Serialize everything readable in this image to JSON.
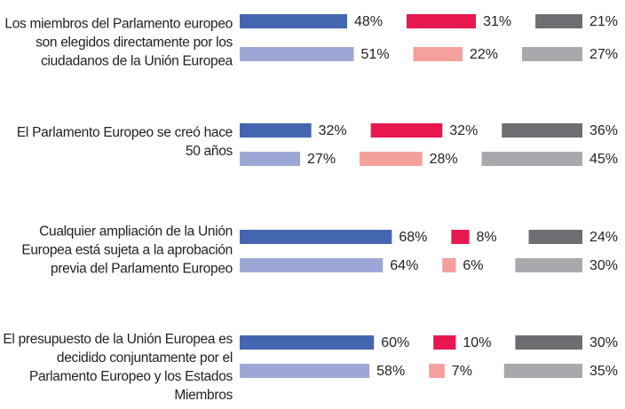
{
  "chart_data": {
    "type": "bar",
    "categories": [
      "Los miembros del Parlamento europeo son elegidos directamente por los ciudadanos de la Unión Europea",
      "El Parlamento Europeo se creó hace 50 años",
      "Cualquier ampliación de la Unión Europea está sujeta a la aprobación previa del Parlamento Europeo",
      "El presupuesto de la Unión Europea es decidido conjuntamente por el Parlamento Europeo y los Estados Miembros"
    ],
    "series": [
      {
        "color": "#4466b0",
        "values": [
          48,
          32,
          68,
          60
        ],
        "value_labels": [
          "48%",
          "32%",
          "68%",
          "60%"
        ]
      },
      {
        "color": "#e8174f",
        "values": [
          31,
          32,
          8,
          10
        ],
        "value_labels": [
          "31%",
          "32%",
          "8%",
          "10%"
        ]
      },
      {
        "color": "#6d6e71",
        "values": [
          21,
          36,
          24,
          30
        ],
        "value_labels": [
          "21%",
          "36%",
          "24%",
          "30%"
        ]
      },
      {
        "color": "#9da7d6",
        "values": [
          51,
          27,
          64,
          58
        ],
        "value_labels": [
          "51%",
          "27%",
          "64%",
          "58%"
        ]
      },
      {
        "color": "#f4a09c",
        "values": [
          22,
          28,
          6,
          7
        ],
        "value_labels": [
          "22%",
          "28%",
          "6%",
          "7%"
        ]
      },
      {
        "color": "#a7a9ac",
        "values": [
          27,
          45,
          30,
          35
        ],
        "value_labels": [
          "27%",
          "45%",
          "30%",
          "35%"
        ]
      }
    ]
  }
}
